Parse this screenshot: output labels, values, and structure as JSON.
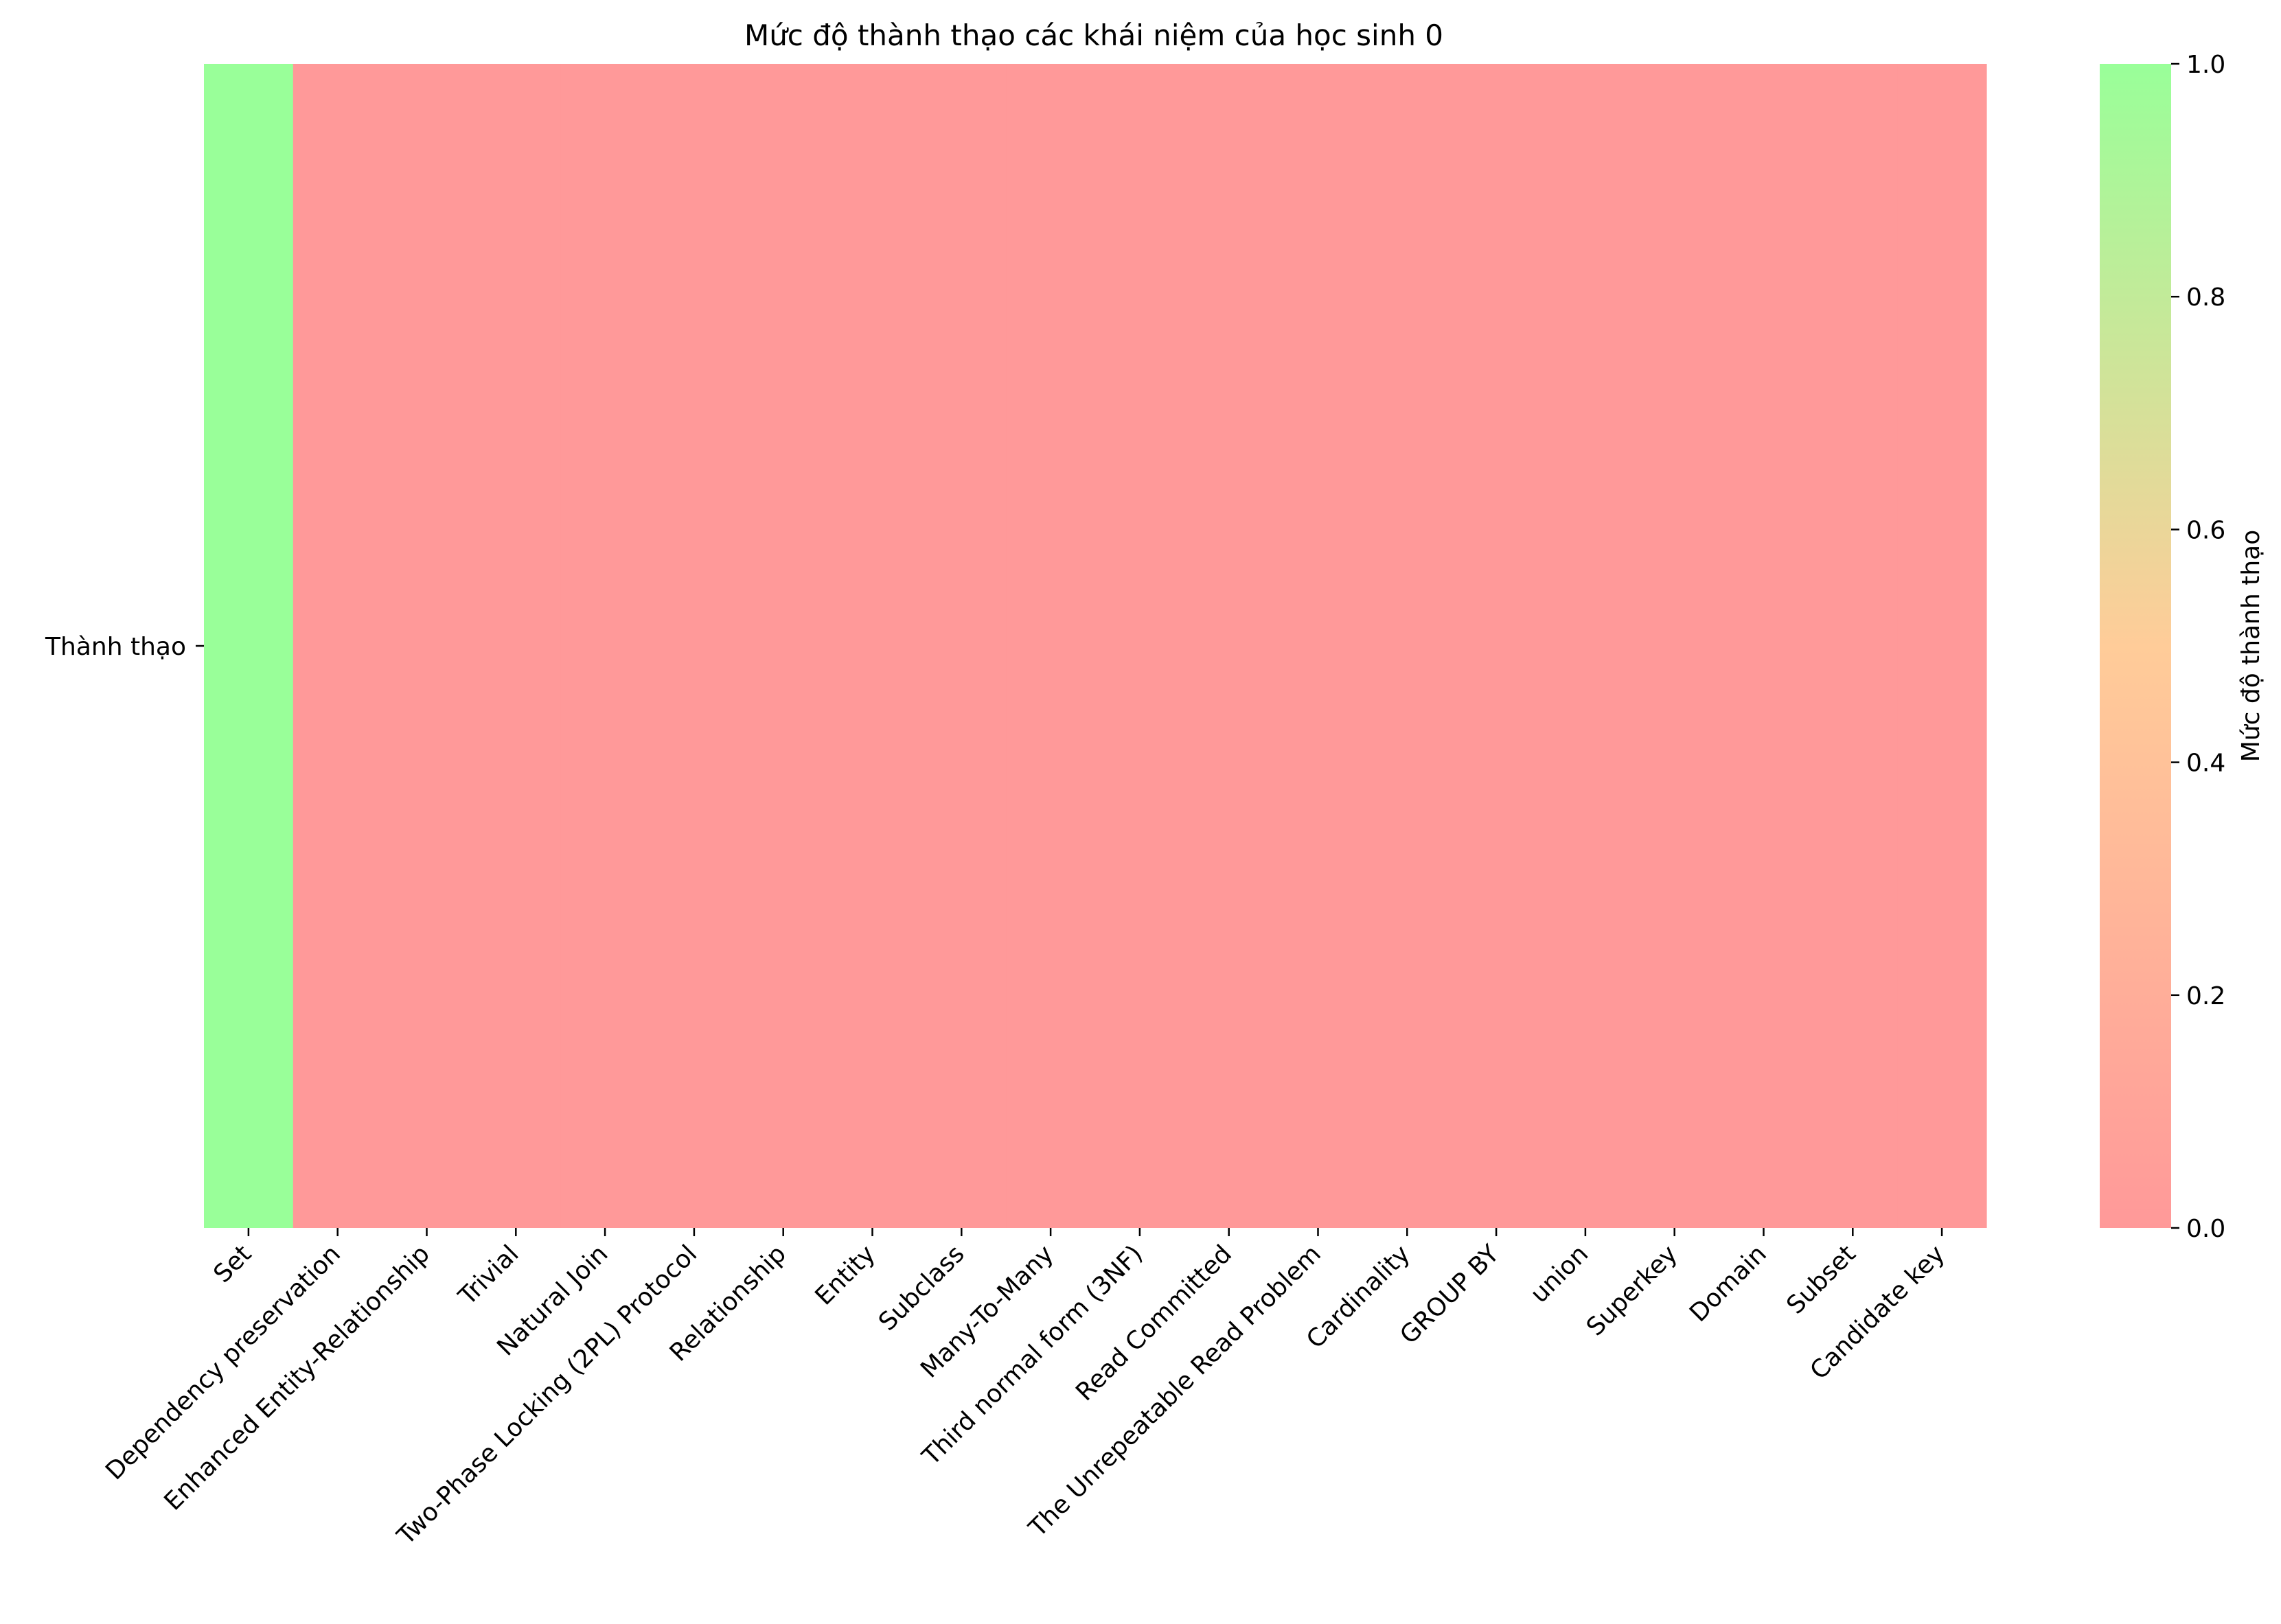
{
  "chart_data": {
    "type": "heatmap",
    "title": "Mức độ thành thạo các khái niệm của học sinh 0",
    "rows": [
      "Thành thạo"
    ],
    "categories": [
      "Set",
      "Dependency preservation",
      "Enhanced Entity-Relationship",
      "Trivial",
      "Natural Join",
      "Two-Phase Locking (2PL) Protocol",
      "Relationship",
      "Entity",
      "Subclass",
      "Many-To-Many",
      "Third normal form (3NF)",
      "Read Committed",
      "The Unrepeatable Read Problem",
      "Cardinality",
      "GROUP BY",
      "union",
      "Superkey",
      "Domain",
      "Subset",
      "Candidate key"
    ],
    "values": [
      [
        1,
        0,
        0,
        0,
        0,
        0,
        0,
        0,
        0,
        0,
        0,
        0,
        0,
        0,
        0,
        0,
        0,
        0,
        0,
        0
      ]
    ],
    "colorbar": {
      "label": "Mức độ thành thạo",
      "range": [
        0,
        1
      ],
      "ticks": [
        "0.0",
        "0.2",
        "0.4",
        "0.6",
        "0.8",
        "1.0"
      ],
      "colors": [
        "#ff9999",
        "#ffcc99",
        "#99ff99"
      ]
    }
  }
}
